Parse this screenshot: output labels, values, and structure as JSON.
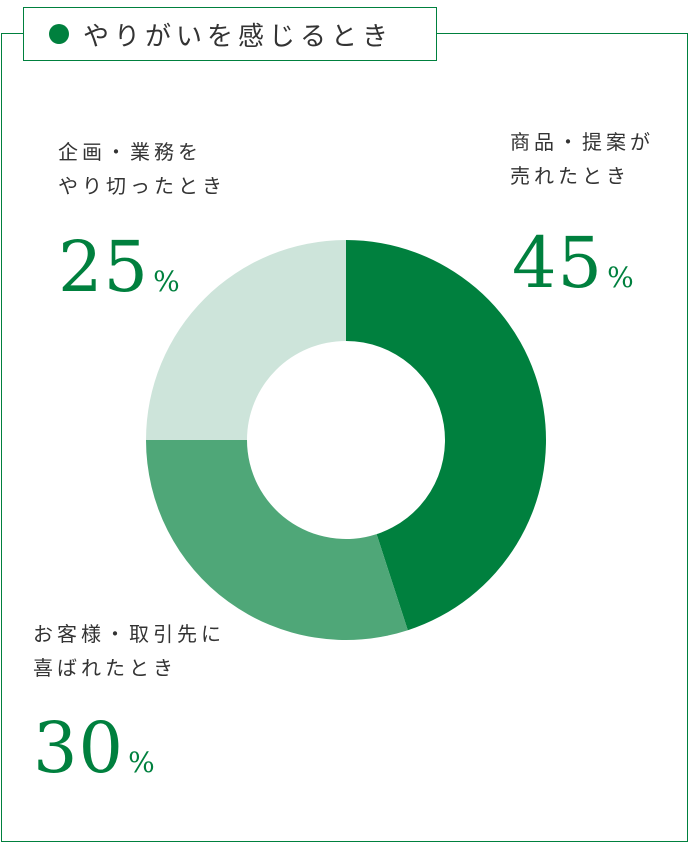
{
  "title": "やりがいを感じるとき",
  "colors": {
    "accent": "#00803e",
    "mid": "#4fa778",
    "light": "#cde4da",
    "text": "#333333"
  },
  "chart_data": {
    "type": "pie",
    "title": "やりがいを感じるとき",
    "unit": "%",
    "slices": [
      {
        "label_lines": [
          "商品・提案が",
          "売れたとき"
        ],
        "value": 45,
        "color": "#00803e"
      },
      {
        "label_lines": [
          "お客様・取引先に",
          "喜ばれたとき"
        ],
        "value": 30,
        "color": "#4fa778"
      },
      {
        "label_lines": [
          "企画・業務を",
          "やり切ったとき"
        ],
        "value": 25,
        "color": "#cde4da"
      }
    ]
  }
}
